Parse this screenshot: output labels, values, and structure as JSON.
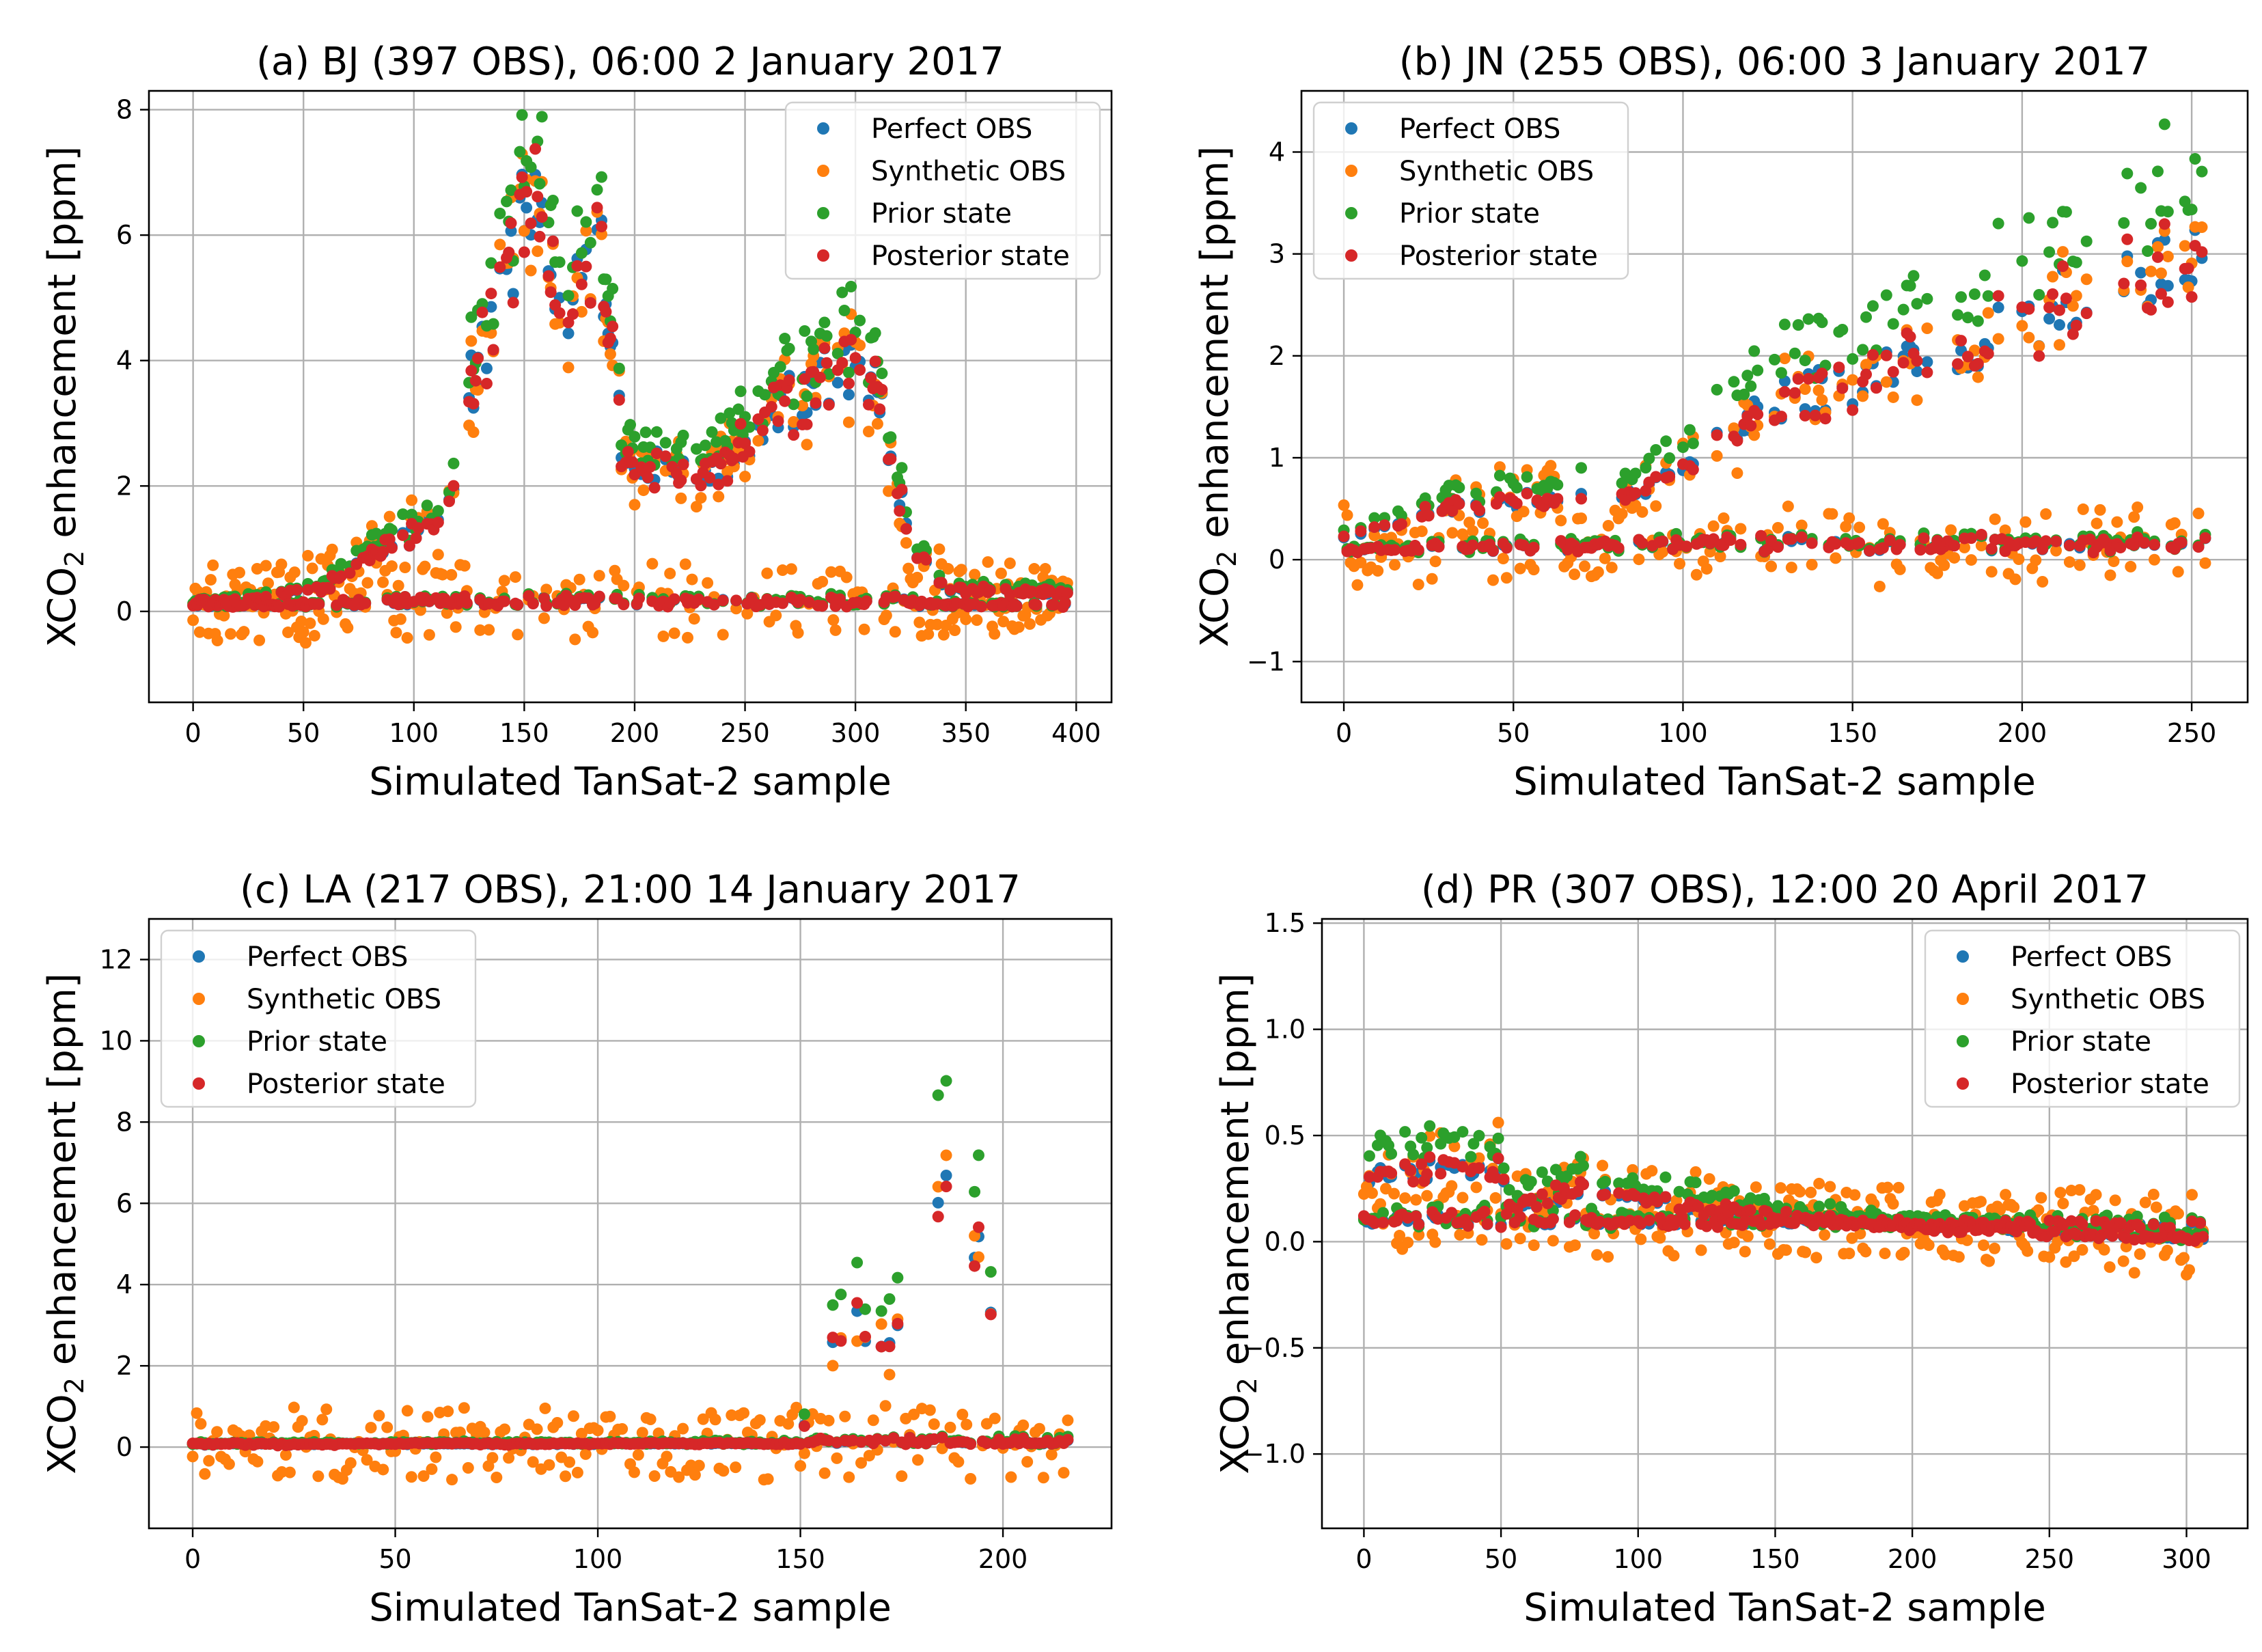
{
  "figure": {
    "legend_entries": [
      "Perfect OBS",
      "Synthetic OBS",
      "Prior state",
      "Posterior state"
    ],
    "colors": {
      "perfect": "#1f77b4",
      "synthetic": "#ff7f0e",
      "prior": "#2ca02c",
      "posterior": "#d62728"
    }
  },
  "chart_data": [
    {
      "type": "scatter",
      "title": "(a) BJ (397 OBS), 06:00 2 January 2017",
      "xlabel": "Simulated TanSat-2 sample",
      "ylabel": "XCO2 enhancement [ppm]",
      "ylabel_main": "XCO",
      "ylabel_sub": "2",
      "ylabel_rest": " enhancement [ppm]",
      "n": 397,
      "xlim": [
        -20,
        416
      ],
      "ylim": [
        -1.45,
        8.3
      ],
      "xticks": [
        0,
        50,
        100,
        150,
        200,
        250,
        300,
        350,
        400
      ],
      "yticks": [
        0,
        2,
        4,
        6,
        8
      ],
      "xtick_labels": [
        "0",
        "50",
        "100",
        "150",
        "200",
        "250",
        "300",
        "350",
        "400"
      ],
      "ytick_labels": [
        "0",
        "2",
        "4",
        "6",
        "8"
      ],
      "grid": true,
      "legend_position": "top-right",
      "series": [
        {
          "name": "Perfect OBS",
          "color": "#1f77b4"
        },
        {
          "name": "Synthetic OBS",
          "color": "#ff7f0e"
        },
        {
          "name": "Prior state",
          "color": "#2ca02c"
        },
        {
          "name": "Posterior state",
          "color": "#d62728"
        }
      ],
      "trend": [
        [
          0,
          0.15
        ],
        [
          30,
          0.2
        ],
        [
          60,
          0.4
        ],
        [
          80,
          0.9
        ],
        [
          100,
          1.2
        ],
        [
          115,
          1.5
        ],
        [
          125,
          3.5
        ],
        [
          140,
          5.0
        ],
        [
          150,
          6.5
        ],
        [
          155,
          6.9
        ],
        [
          160,
          5.5
        ],
        [
          170,
          5.0
        ],
        [
          185,
          5.5
        ],
        [
          195,
          2.5
        ],
        [
          215,
          2.3
        ],
        [
          240,
          2.4
        ],
        [
          255,
          2.8
        ],
        [
          275,
          3.5
        ],
        [
          295,
          4.0
        ],
        [
          310,
          3.6
        ],
        [
          325,
          1.0
        ],
        [
          340,
          0.35
        ],
        [
          397,
          0.3
        ]
      ],
      "branch_fraction": 0.5,
      "noise": 0.45,
      "prior_scale": 1.12
    },
    {
      "type": "scatter",
      "title": "(b) JN (255 OBS), 06:00 3 January 2017",
      "xlabel": "Simulated TanSat-2 sample",
      "ylabel": "XCO2 enhancement [ppm]",
      "ylabel_main": "XCO",
      "ylabel_sub": "2",
      "ylabel_rest": " enhancement [ppm]",
      "n": 255,
      "xlim": [
        -12.5,
        266.5
      ],
      "ylim": [
        -1.4,
        4.6
      ],
      "xticks": [
        0,
        50,
        100,
        150,
        200,
        250
      ],
      "yticks": [
        -1,
        0,
        1,
        2,
        3,
        4
      ],
      "xtick_labels": [
        "0",
        "50",
        "100",
        "150",
        "200",
        "250"
      ],
      "ytick_labels": [
        "−1",
        "0",
        "1",
        "2",
        "3",
        "4"
      ],
      "grid": true,
      "legend_position": "top-left",
      "series": [
        {
          "name": "Perfect OBS",
          "color": "#1f77b4"
        },
        {
          "name": "Synthetic OBS",
          "color": "#ff7f0e"
        },
        {
          "name": "Prior state",
          "color": "#2ca02c"
        },
        {
          "name": "Posterior state",
          "color": "#d62728"
        }
      ],
      "trend": [
        [
          0,
          0.2
        ],
        [
          30,
          0.5
        ],
        [
          60,
          0.6
        ],
        [
          90,
          0.7
        ],
        [
          110,
          1.2
        ],
        [
          130,
          1.6
        ],
        [
          150,
          1.7
        ],
        [
          170,
          2.0
        ],
        [
          200,
          2.3
        ],
        [
          220,
          2.7
        ],
        [
          240,
          2.8
        ],
        [
          255,
          2.9
        ]
      ],
      "branch_fraction": 0.45,
      "noise": 0.45,
      "prior_scale": 1.25
    },
    {
      "type": "scatter",
      "title": "(c) LA (217 OBS), 21:00 14 January 2017",
      "xlabel": "Simulated TanSat-2 sample",
      "ylabel": "XCO2 enhancement [ppm]",
      "ylabel_main": "XCO",
      "ylabel_sub": "2",
      "ylabel_rest": " enhancement [ppm]",
      "n": 217,
      "xlim": [
        -10.8,
        226.8
      ],
      "ylim": [
        -2.0,
        13.0
      ],
      "xticks": [
        0,
        50,
        100,
        150,
        200
      ],
      "yticks": [
        0,
        2,
        4,
        6,
        8,
        10,
        12
      ],
      "xtick_labels": [
        "0",
        "50",
        "100",
        "150",
        "200"
      ],
      "ytick_labels": [
        "0",
        "2",
        "4",
        "6",
        "8",
        "10",
        "12"
      ],
      "grid": true,
      "legend_position": "top-left",
      "series": [
        {
          "name": "Perfect OBS",
          "color": "#1f77b4"
        },
        {
          "name": "Synthetic OBS",
          "color": "#ff7f0e"
        },
        {
          "name": "Prior state",
          "color": "#2ca02c"
        },
        {
          "name": "Posterior state",
          "color": "#d62728"
        }
      ],
      "trend": [
        [
          0,
          0.05
        ],
        [
          150,
          0.1
        ],
        [
          157,
          3.0
        ],
        [
          165,
          3.2
        ],
        [
          175,
          2.5
        ],
        [
          183,
          7.0
        ],
        [
          190,
          5.5
        ],
        [
          196,
          4.5
        ],
        [
          200,
          0.2
        ],
        [
          217,
          0.15
        ]
      ],
      "branch_fraction": 0.3,
      "noise": 0.6,
      "prior_scale": 1.35
    },
    {
      "type": "scatter",
      "title": "(d) PR (307 OBS), 12:00 20 April 2017",
      "xlabel": "Simulated TanSat-2 sample",
      "ylabel": "XCO2 enhancement [ppm]",
      "ylabel_main": "XCO",
      "ylabel_sub": "2",
      "ylabel_rest": " enhancement [ppm]",
      "n": 307,
      "xlim": [
        -15.3,
        322.3
      ],
      "ylim": [
        -1.35,
        1.52
      ],
      "xticks": [
        0,
        50,
        100,
        150,
        200,
        250,
        300
      ],
      "yticks": [
        -1.0,
        -0.5,
        0.0,
        0.5,
        1.0,
        1.5
      ],
      "xtick_labels": [
        "0",
        "50",
        "100",
        "150",
        "200",
        "250",
        "300"
      ],
      "ytick_labels": [
        "−1.0",
        "−0.5",
        "0.0",
        "0.5",
        "1.0",
        "1.5"
      ],
      "grid": true,
      "legend_position": "top-right",
      "series": [
        {
          "name": "Perfect OBS",
          "color": "#1f77b4"
        },
        {
          "name": "Synthetic OBS",
          "color": "#ff7f0e"
        },
        {
          "name": "Prior state",
          "color": "#2ca02c"
        },
        {
          "name": "Posterior state",
          "color": "#d62728"
        }
      ],
      "trend": [
        [
          0,
          0.3
        ],
        [
          25,
          0.35
        ],
        [
          50,
          0.35
        ],
        [
          52,
          0.15
        ],
        [
          80,
          0.25
        ],
        [
          100,
          0.2
        ],
        [
          150,
          0.12
        ],
        [
          190,
          0.08
        ],
        [
          250,
          0.04
        ],
        [
          307,
          0.01
        ]
      ],
      "branch_fraction": 0.55,
      "noise": 0.5,
      "prior_scale": 1.3
    }
  ]
}
